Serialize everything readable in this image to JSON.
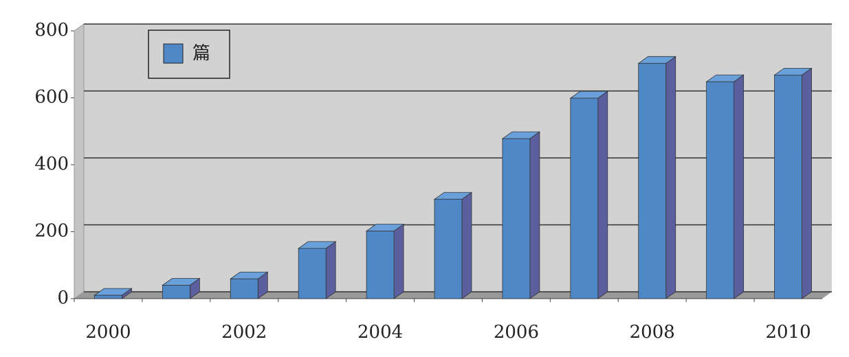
{
  "chart_data": {
    "type": "bar3d",
    "categories": [
      "2000",
      null,
      "2002",
      null,
      "2004",
      null,
      "2006",
      null,
      "2008",
      null,
      "2010"
    ],
    "series": [
      {
        "name": "篇",
        "color": "#4f88c6",
        "values": [
          10,
          40,
          59,
          150,
          202,
          297,
          478,
          599,
          703,
          648,
          668
        ]
      }
    ],
    "ylim": [
      0,
      800
    ],
    "yticks": [
      0,
      200,
      400,
      600,
      800
    ],
    "grid": true,
    "legend": "top-left"
  }
}
